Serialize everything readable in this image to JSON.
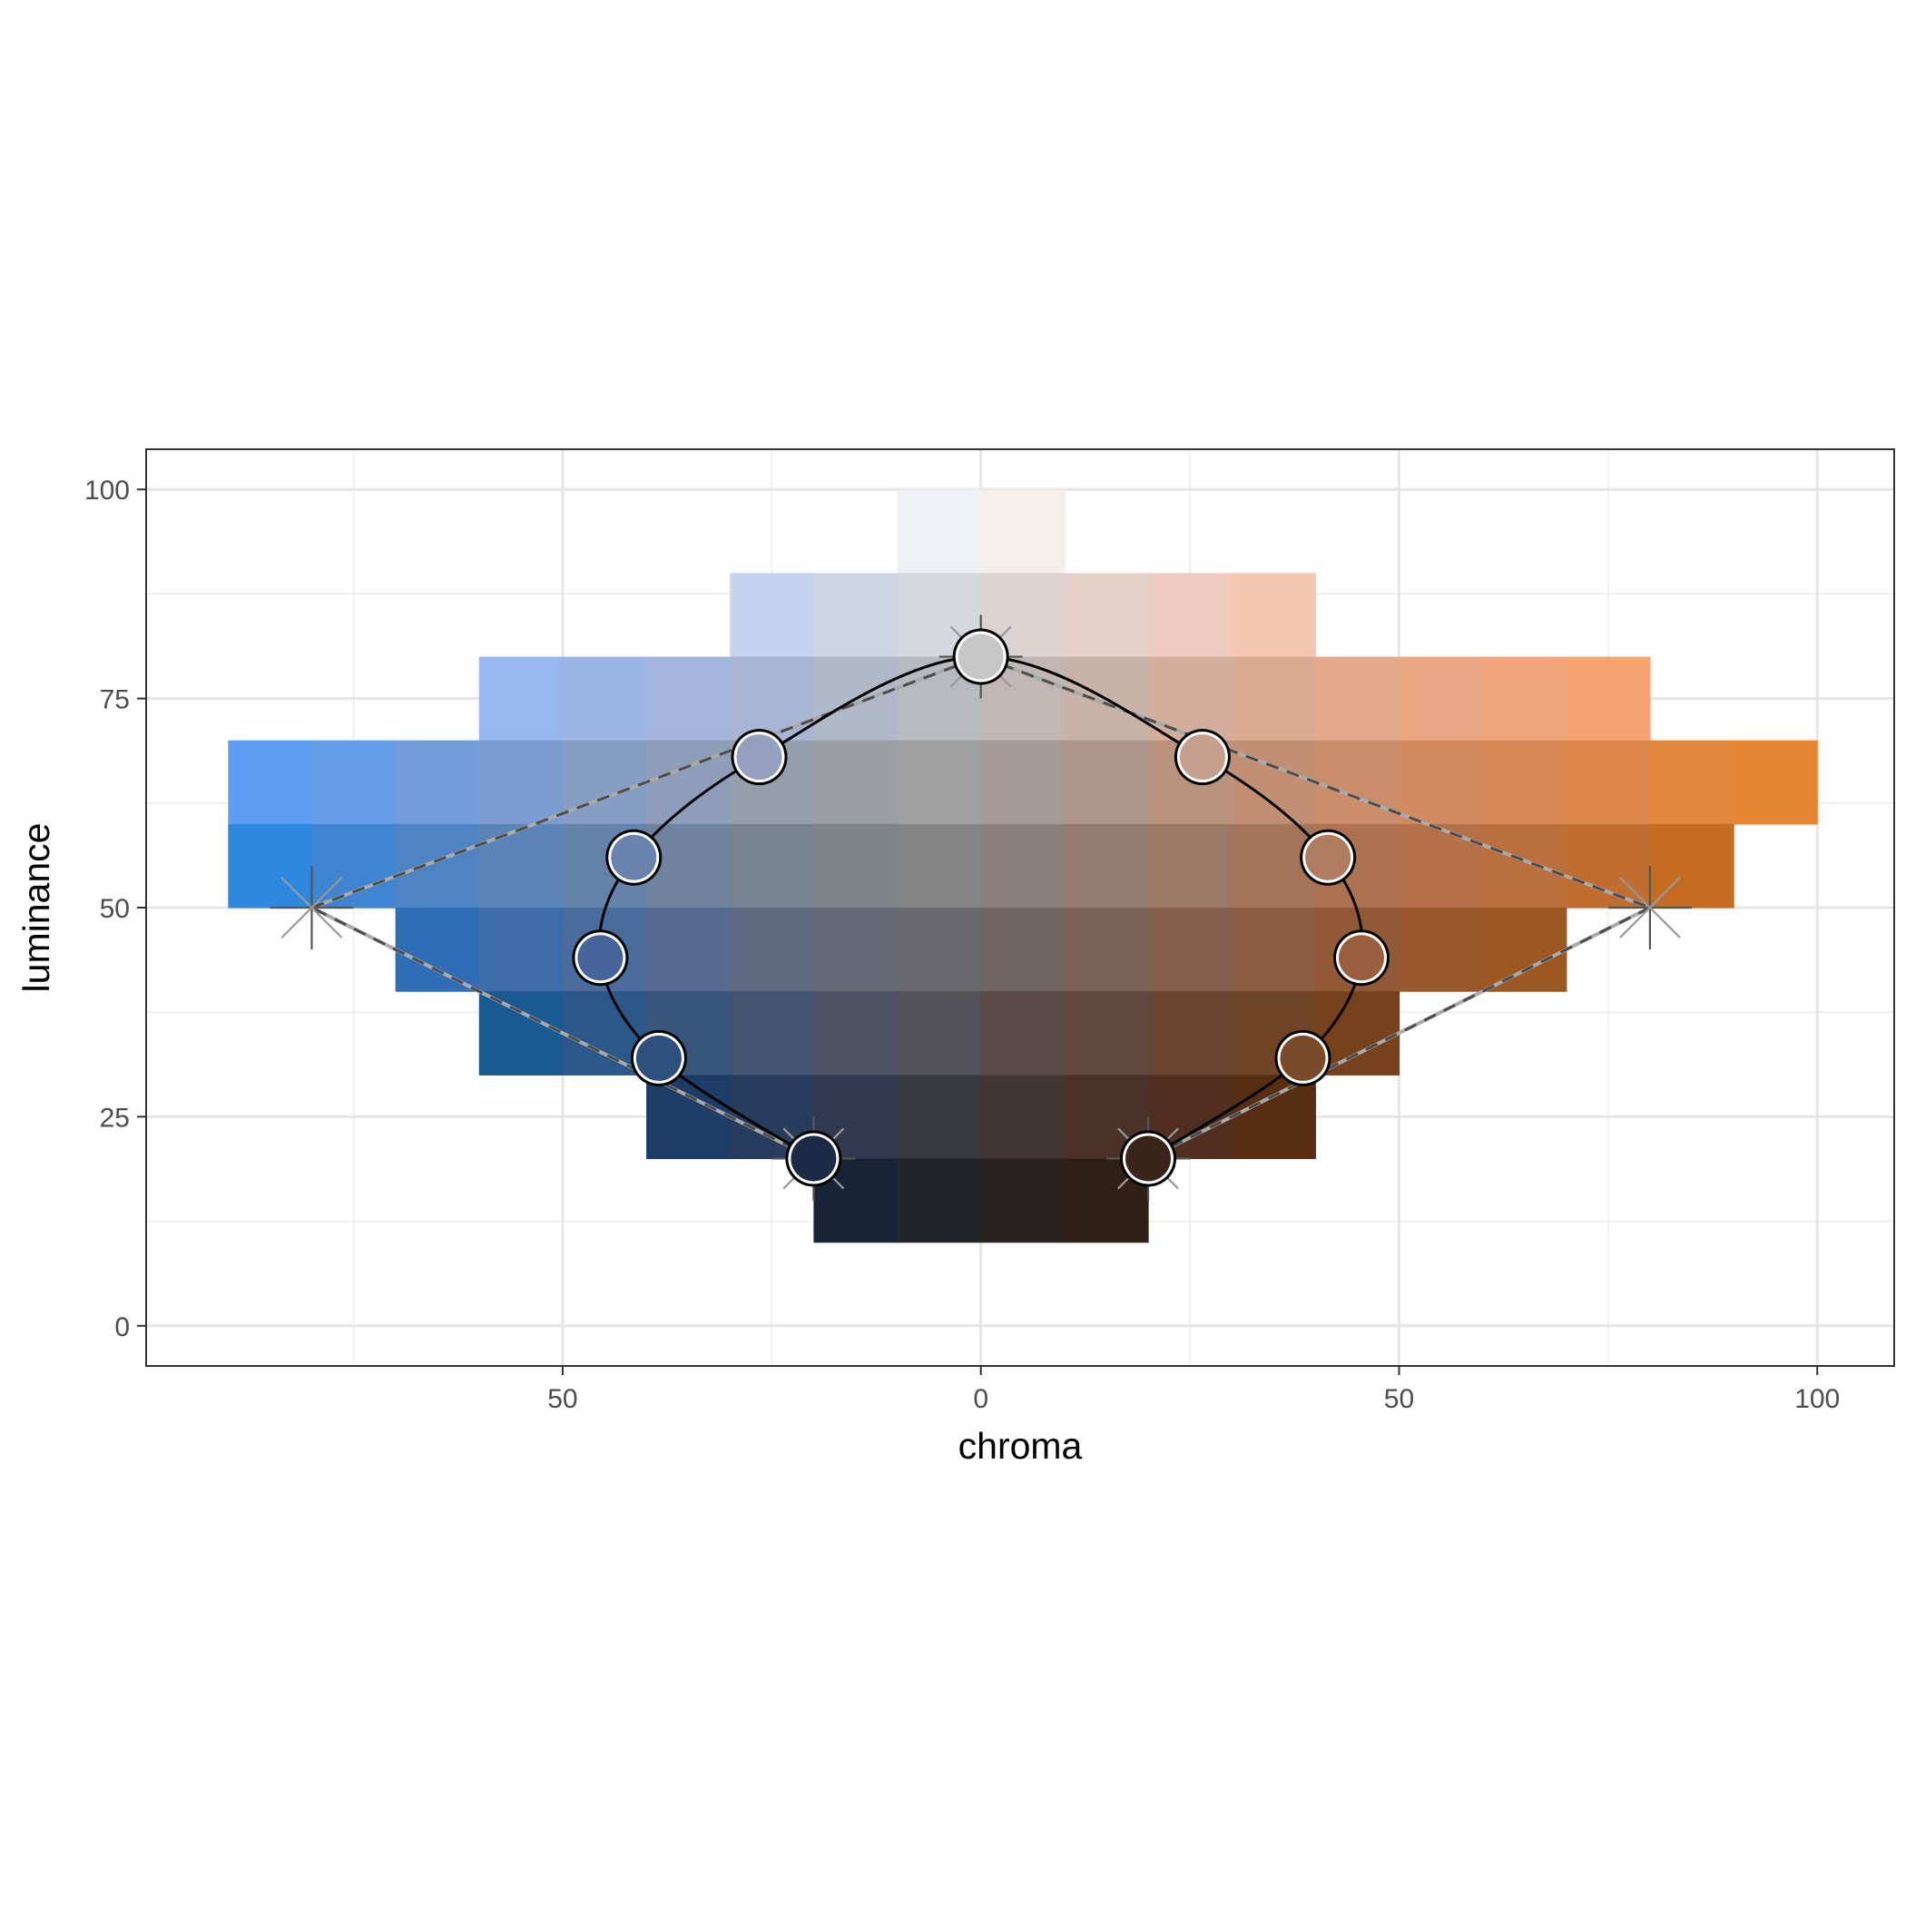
{
  "chart_data": {
    "type": "heatmap",
    "title": "",
    "xlabel": "chroma",
    "ylabel": "luminance",
    "xlim": [
      -99.8,
      109.2
    ],
    "ylim": [
      -4.8,
      104.8
    ],
    "x_ticks": [
      -50,
      0,
      50,
      100
    ],
    "x_tick_labels": [
      "50",
      "0",
      "50",
      "100"
    ],
    "y_ticks": [
      0,
      25,
      50,
      75,
      100
    ],
    "y_tick_labels": [
      "0",
      "25",
      "50",
      "75",
      "100"
    ],
    "x_minor_grid": [
      -75,
      -25,
      25,
      75
    ],
    "y_minor_grid": [
      12.5,
      37.5,
      62.5,
      87.5
    ],
    "grid": true,
    "cell_size": {
      "chroma": 10,
      "luminance": 10
    },
    "tiles": [
      {
        "c0": -10,
        "c1": 0,
        "l0": 90,
        "l1": 100,
        "color": "#eef0f4"
      },
      {
        "c0": 0,
        "c1": 10,
        "l0": 90,
        "l1": 100,
        "color": "#f5edea"
      },
      {
        "c0": -30,
        "c1": -20,
        "l0": 80,
        "l1": 90,
        "color": "#c6d4ef"
      },
      {
        "c0": -20,
        "c1": -10,
        "l0": 80,
        "l1": 90,
        "color": "#cdd5e4"
      },
      {
        "c0": -10,
        "c1": 0,
        "l0": 80,
        "l1": 90,
        "color": "#d5d8dd"
      },
      {
        "c0": 0,
        "c1": 10,
        "l0": 80,
        "l1": 90,
        "color": "#ddd4d1"
      },
      {
        "c0": 10,
        "c1": 20,
        "l0": 80,
        "l1": 90,
        "color": "#e6d1c9"
      },
      {
        "c0": 20,
        "c1": 30,
        "l0": 80,
        "l1": 90,
        "color": "#edccbf"
      },
      {
        "c0": 30,
        "c1": 40,
        "l0": 80,
        "l1": 90,
        "color": "#f5c7b1"
      },
      {
        "c0": -60,
        "c1": -50,
        "l0": 70,
        "l1": 80,
        "color": "#98b7ee"
      },
      {
        "c0": -50,
        "c1": -40,
        "l0": 70,
        "l1": 80,
        "color": "#9cb4e6"
      },
      {
        "c0": -40,
        "c1": -30,
        "l0": 70,
        "l1": 80,
        "color": "#a3b5dd"
      },
      {
        "c0": -30,
        "c1": -20,
        "l0": 70,
        "l1": 80,
        "color": "#a9b6d3"
      },
      {
        "c0": -20,
        "c1": -10,
        "l0": 70,
        "l1": 80,
        "color": "#b0b8c9"
      },
      {
        "c0": -10,
        "c1": 0,
        "l0": 70,
        "l1": 80,
        "color": "#b7babe"
      },
      {
        "c0": 0,
        "c1": 10,
        "l0": 70,
        "l1": 80,
        "color": "#c0b7b4"
      },
      {
        "c0": 10,
        "c1": 20,
        "l0": 70,
        "l1": 80,
        "color": "#c9b2a8"
      },
      {
        "c0": 20,
        "c1": 30,
        "l0": 70,
        "l1": 80,
        "color": "#d3ae9c"
      },
      {
        "c0": 30,
        "c1": 40,
        "l0": 70,
        "l1": 80,
        "color": "#dcab93"
      },
      {
        "c0": 40,
        "c1": 50,
        "l0": 70,
        "l1": 80,
        "color": "#e3aa8c"
      },
      {
        "c0": 50,
        "c1": 60,
        "l0": 70,
        "l1": 80,
        "color": "#eaa984"
      },
      {
        "c0": 60,
        "c1": 70,
        "l0": 70,
        "l1": 80,
        "color": "#f1a67b"
      },
      {
        "c0": 70,
        "c1": 80,
        "l0": 70,
        "l1": 80,
        "color": "#f6a471"
      },
      {
        "c0": -90,
        "c1": -80,
        "l0": 60,
        "l1": 70,
        "color": "#5c9ff2"
      },
      {
        "c0": -80,
        "c1": -70,
        "l0": 60,
        "l1": 70,
        "color": "#659ee6"
      },
      {
        "c0": -70,
        "c1": -60,
        "l0": 60,
        "l1": 70,
        "color": "#719ddb"
      },
      {
        "c0": -60,
        "c1": -50,
        "l0": 60,
        "l1": 70,
        "color": "#7c9dcf"
      },
      {
        "c0": -50,
        "c1": -40,
        "l0": 60,
        "l1": 70,
        "color": "#869dc4"
      },
      {
        "c0": -40,
        "c1": -30,
        "l0": 60,
        "l1": 70,
        "color": "#8e9db9"
      },
      {
        "c0": -30,
        "c1": -20,
        "l0": 60,
        "l1": 70,
        "color": "#959ead"
      },
      {
        "c0": -20,
        "c1": -10,
        "l0": 60,
        "l1": 70,
        "color": "#9b9fa3"
      },
      {
        "c0": -10,
        "c1": 0,
        "l0": 60,
        "l1": 70,
        "color": "#a0a0a0"
      },
      {
        "c0": 0,
        "c1": 10,
        "l0": 60,
        "l1": 70,
        "color": "#a69a96"
      },
      {
        "c0": 10,
        "c1": 20,
        "l0": 60,
        "l1": 70,
        "color": "#b0968a"
      },
      {
        "c0": 20,
        "c1": 30,
        "l0": 60,
        "l1": 70,
        "color": "#ba937f"
      },
      {
        "c0": 30,
        "c1": 40,
        "l0": 60,
        "l1": 70,
        "color": "#c38f74"
      },
      {
        "c0": 40,
        "c1": 50,
        "l0": 60,
        "l1": 70,
        "color": "#cb8d6a"
      },
      {
        "c0": 50,
        "c1": 60,
        "l0": 60,
        "l1": 70,
        "color": "#d28b60"
      },
      {
        "c0": 60,
        "c1": 70,
        "l0": 60,
        "l1": 70,
        "color": "#d88955"
      },
      {
        "c0": 70,
        "c1": 80,
        "l0": 60,
        "l1": 70,
        "color": "#dd884a"
      },
      {
        "c0": 80,
        "c1": 90,
        "l0": 60,
        "l1": 70,
        "color": "#e2873e"
      },
      {
        "c0": 90,
        "c1": 100,
        "l0": 60,
        "l1": 70,
        "color": "#e68632"
      },
      {
        "c0": -90,
        "c1": -80,
        "l0": 50,
        "l1": 60,
        "color": "#2f88df"
      },
      {
        "c0": -80,
        "c1": -70,
        "l0": 50,
        "l1": 60,
        "color": "#3f85d2"
      },
      {
        "c0": -70,
        "c1": -60,
        "l0": 50,
        "l1": 60,
        "color": "#4e84c4"
      },
      {
        "c0": -60,
        "c1": -50,
        "l0": 50,
        "l1": 60,
        "color": "#5b84b7"
      },
      {
        "c0": -50,
        "c1": -40,
        "l0": 50,
        "l1": 60,
        "color": "#6583aa"
      },
      {
        "c0": -40,
        "c1": -30,
        "l0": 50,
        "l1": 60,
        "color": "#6f839e"
      },
      {
        "c0": -30,
        "c1": -20,
        "l0": 50,
        "l1": 60,
        "color": "#778392"
      },
      {
        "c0": -20,
        "c1": -10,
        "l0": 50,
        "l1": 60,
        "color": "#7e8387"
      },
      {
        "c0": -10,
        "c1": 0,
        "l0": 50,
        "l1": 60,
        "color": "#848484"
      },
      {
        "c0": 0,
        "c1": 10,
        "l0": 50,
        "l1": 60,
        "color": "#8b7f7b"
      },
      {
        "c0": 10,
        "c1": 20,
        "l0": 50,
        "l1": 60,
        "color": "#947b70"
      },
      {
        "c0": 20,
        "c1": 30,
        "l0": 50,
        "l1": 60,
        "color": "#9c7866"
      },
      {
        "c0": 30,
        "c1": 40,
        "l0": 50,
        "l1": 60,
        "color": "#a5755b"
      },
      {
        "c0": 40,
        "c1": 50,
        "l0": 50,
        "l1": 60,
        "color": "#ad7351"
      },
      {
        "c0": 50,
        "c1": 60,
        "l0": 50,
        "l1": 60,
        "color": "#b47147"
      },
      {
        "c0": 60,
        "c1": 70,
        "l0": 50,
        "l1": 60,
        "color": "#ba6f3c"
      },
      {
        "c0": 70,
        "c1": 80,
        "l0": 50,
        "l1": 60,
        "color": "#bf6e30"
      },
      {
        "c0": 80,
        "c1": 90,
        "l0": 50,
        "l1": 60,
        "color": "#c46d22"
      },
      {
        "c0": -70,
        "c1": -60,
        "l0": 40,
        "l1": 50,
        "color": "#2f6db5"
      },
      {
        "c0": -60,
        "c1": -50,
        "l0": 40,
        "l1": 50,
        "color": "#3d6ca8"
      },
      {
        "c0": -50,
        "c1": -40,
        "l0": 40,
        "l1": 50,
        "color": "#4a6b9b"
      },
      {
        "c0": -40,
        "c1": -30,
        "l0": 40,
        "l1": 50,
        "color": "#556a8f"
      },
      {
        "c0": -30,
        "c1": -20,
        "l0": 40,
        "l1": 50,
        "color": "#5e6a82"
      },
      {
        "c0": -20,
        "c1": -10,
        "l0": 40,
        "l1": 50,
        "color": "#656a76"
      },
      {
        "c0": -10,
        "c1": 0,
        "l0": 40,
        "l1": 50,
        "color": "#6a6a6c"
      },
      {
        "c0": 0,
        "c1": 10,
        "l0": 40,
        "l1": 50,
        "color": "#716561"
      },
      {
        "c0": 10,
        "c1": 20,
        "l0": 40,
        "l1": 50,
        "color": "#7a6256"
      },
      {
        "c0": 20,
        "c1": 30,
        "l0": 40,
        "l1": 50,
        "color": "#835e4c"
      },
      {
        "c0": 30,
        "c1": 40,
        "l0": 40,
        "l1": 50,
        "color": "#8b5b42"
      },
      {
        "c0": 40,
        "c1": 50,
        "l0": 40,
        "l1": 50,
        "color": "#925937"
      },
      {
        "c0": 50,
        "c1": 60,
        "l0": 40,
        "l1": 50,
        "color": "#98582c"
      },
      {
        "c0": 60,
        "c1": 70,
        "l0": 40,
        "l1": 50,
        "color": "#9d5720"
      },
      {
        "c0": -60,
        "c1": -50,
        "l0": 30,
        "l1": 40,
        "color": "#1a5a94"
      },
      {
        "c0": -50,
        "c1": -40,
        "l0": 30,
        "l1": 40,
        "color": "#2b5888"
      },
      {
        "c0": -40,
        "c1": -30,
        "l0": 30,
        "l1": 40,
        "color": "#38567c"
      },
      {
        "c0": -30,
        "c1": -20,
        "l0": 30,
        "l1": 40,
        "color": "#435470"
      },
      {
        "c0": -20,
        "c1": -10,
        "l0": 30,
        "l1": 40,
        "color": "#4c5264"
      },
      {
        "c0": -10,
        "c1": 0,
        "l0": 30,
        "l1": 40,
        "color": "#535258"
      },
      {
        "c0": 0,
        "c1": 10,
        "l0": 30,
        "l1": 40,
        "color": "#594c48"
      },
      {
        "c0": 10,
        "c1": 20,
        "l0": 30,
        "l1": 40,
        "color": "#62483d"
      },
      {
        "c0": 20,
        "c1": 30,
        "l0": 30,
        "l1": 40,
        "color": "#6a4532"
      },
      {
        "c0": 30,
        "c1": 40,
        "l0": 30,
        "l1": 40,
        "color": "#714327"
      },
      {
        "c0": 40,
        "c1": 50,
        "l0": 30,
        "l1": 40,
        "color": "#77421b"
      },
      {
        "c0": -40,
        "c1": -30,
        "l0": 20,
        "l1": 30,
        "color": "#1d3d68"
      },
      {
        "c0": -30,
        "c1": -20,
        "l0": 20,
        "l1": 30,
        "color": "#283c5d"
      },
      {
        "c0": -20,
        "c1": -10,
        "l0": 20,
        "l1": 30,
        "color": "#313a51"
      },
      {
        "c0": -10,
        "c1": 0,
        "l0": 20,
        "l1": 30,
        "color": "#383a3f"
      },
      {
        "c0": 0,
        "c1": 10,
        "l0": 20,
        "l1": 30,
        "color": "#423634"
      },
      {
        "c0": 10,
        "c1": 20,
        "l0": 20,
        "l1": 30,
        "color": "#4a3229"
      },
      {
        "c0": 20,
        "c1": 30,
        "l0": 20,
        "l1": 30,
        "color": "#512f1e"
      },
      {
        "c0": 30,
        "c1": 40,
        "l0": 20,
        "l1": 30,
        "color": "#572e12"
      },
      {
        "c0": -20,
        "c1": -10,
        "l0": 10,
        "l1": 20,
        "color": "#172336"
      },
      {
        "c0": -10,
        "c1": 0,
        "l0": 10,
        "l1": 20,
        "color": "#212429"
      },
      {
        "c0": 0,
        "c1": 10,
        "l0": 10,
        "l1": 20,
        "color": "#2a2220"
      },
      {
        "c0": 10,
        "c1": 20,
        "l0": 10,
        "l1": 20,
        "color": "#311e14"
      }
    ],
    "palette_points": [
      {
        "chroma": -20,
        "luminance": 20,
        "color": "#1c2b45"
      },
      {
        "chroma": -38.5,
        "luminance": 32,
        "color": "#2f4f7f"
      },
      {
        "chroma": -45.5,
        "luminance": 44,
        "color": "#47649a"
      },
      {
        "chroma": -41.5,
        "luminance": 56,
        "color": "#6a83ae"
      },
      {
        "chroma": -26.5,
        "luminance": 68,
        "color": "#959fbe"
      },
      {
        "chroma": 0,
        "luminance": 80,
        "color": "#c7c7c7"
      },
      {
        "chroma": 26.5,
        "luminance": 68,
        "color": "#c6a08f"
      },
      {
        "chroma": 41.5,
        "luminance": 56,
        "color": "#b07c5f"
      },
      {
        "chroma": 45.5,
        "luminance": 44,
        "color": "#9a603d"
      },
      {
        "chroma": 38.5,
        "luminance": 32,
        "color": "#7a4a2a"
      },
      {
        "chroma": 20,
        "luminance": 20,
        "color": "#3a2419"
      }
    ],
    "control_points": [
      {
        "chroma": -20,
        "luminance": 20
      },
      {
        "chroma": -80,
        "luminance": 50
      },
      {
        "chroma": 0,
        "luminance": 80
      },
      {
        "chroma": 80,
        "luminance": 50
      },
      {
        "chroma": 20,
        "luminance": 20
      }
    ]
  }
}
